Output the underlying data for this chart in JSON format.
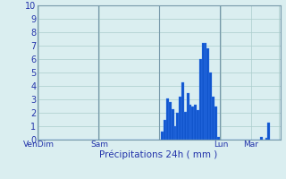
{
  "title": "",
  "xlabel": "Précipitations 24h ( mm )",
  "ylabel": "",
  "ylim": [
    0,
    10
  ],
  "yticks": [
    0,
    1,
    2,
    3,
    4,
    5,
    6,
    7,
    8,
    9,
    10
  ],
  "background_color": "#daeef0",
  "bar_color": "#1155cc",
  "bar_edge_color": "#4488ff",
  "grid_color": "#aacccc",
  "axis_label_color": "#2233aa",
  "tick_label_color": "#2233aa",
  "bar_values": [
    0,
    0,
    0,
    0,
    0,
    0,
    0,
    0,
    0,
    0,
    0,
    0,
    0,
    0,
    0,
    0,
    0,
    0,
    0,
    0,
    0,
    0,
    0,
    0,
    0,
    0,
    0,
    0,
    0,
    0,
    0,
    0,
    0,
    0,
    0,
    0,
    0,
    0,
    0,
    0,
    0,
    0,
    0,
    0,
    0,
    0,
    0,
    0,
    0,
    0.6,
    1.5,
    3.1,
    2.8,
    2.3,
    1.0,
    2.0,
    3.2,
    4.3,
    2.1,
    3.5,
    2.6,
    2.5,
    2.6,
    2.2,
    6.0,
    7.2,
    7.2,
    6.8,
    5.0,
    3.2,
    2.5,
    0.2,
    0,
    0,
    0,
    0,
    0,
    0,
    0,
    0,
    0,
    0,
    0,
    0,
    0,
    0,
    0,
    0,
    0.2,
    0,
    0.15,
    1.3,
    0,
    0,
    0,
    0
  ],
  "n_bars": 96,
  "x_tick_positions": [
    0,
    24,
    72,
    84,
    95
  ],
  "x_tick_labels": [
    "VenDim",
    "Sam",
    "Lun",
    "Mar",
    ""
  ],
  "day_line_positions": [
    0,
    24,
    48,
    72,
    96
  ],
  "day_line_color": "#7799aa"
}
